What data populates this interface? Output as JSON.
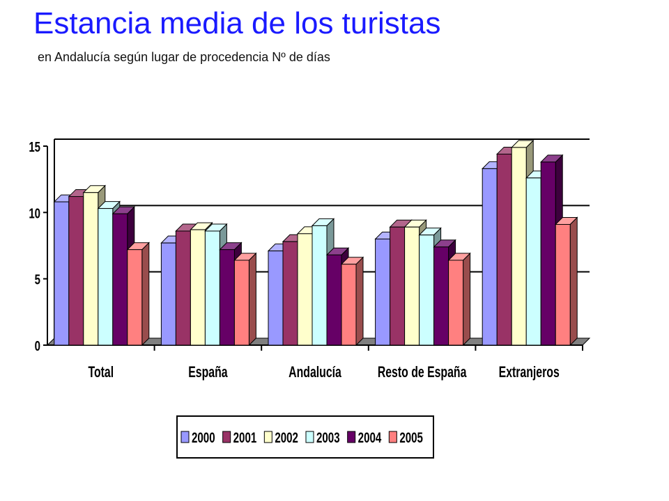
{
  "header": {
    "title": "Estancia media de los turistas",
    "subtitle": "en Andalucía según lugar de procedencia Nº de días"
  },
  "chart_data": {
    "type": "bar",
    "title": "",
    "xlabel": "",
    "ylabel": "",
    "ylim": [
      0,
      15
    ],
    "yticks": [
      0,
      5,
      10,
      15
    ],
    "grid": true,
    "legend_position": "bottom",
    "categories": [
      "Total",
      "España",
      "Andalucía",
      "Resto de España",
      "Extranjeros"
    ],
    "series": [
      {
        "name": "2000",
        "color": "#9999ff",
        "values": [
          10.8,
          7.7,
          7.1,
          8.0,
          13.3
        ]
      },
      {
        "name": "2001",
        "color": "#993366",
        "values": [
          11.2,
          8.6,
          7.8,
          8.9,
          14.4
        ]
      },
      {
        "name": "2002",
        "color": "#ffffcc",
        "values": [
          11.5,
          8.7,
          8.4,
          8.9,
          14.9
        ]
      },
      {
        "name": "2003",
        "color": "#ccffff",
        "values": [
          10.3,
          8.6,
          9.0,
          8.3,
          12.6
        ]
      },
      {
        "name": "2004",
        "color": "#660066",
        "values": [
          9.9,
          7.2,
          6.8,
          7.4,
          13.8
        ]
      },
      {
        "name": "2005",
        "color": "#ff8080",
        "values": [
          7.2,
          6.4,
          6.1,
          6.4,
          9.1
        ]
      }
    ]
  }
}
